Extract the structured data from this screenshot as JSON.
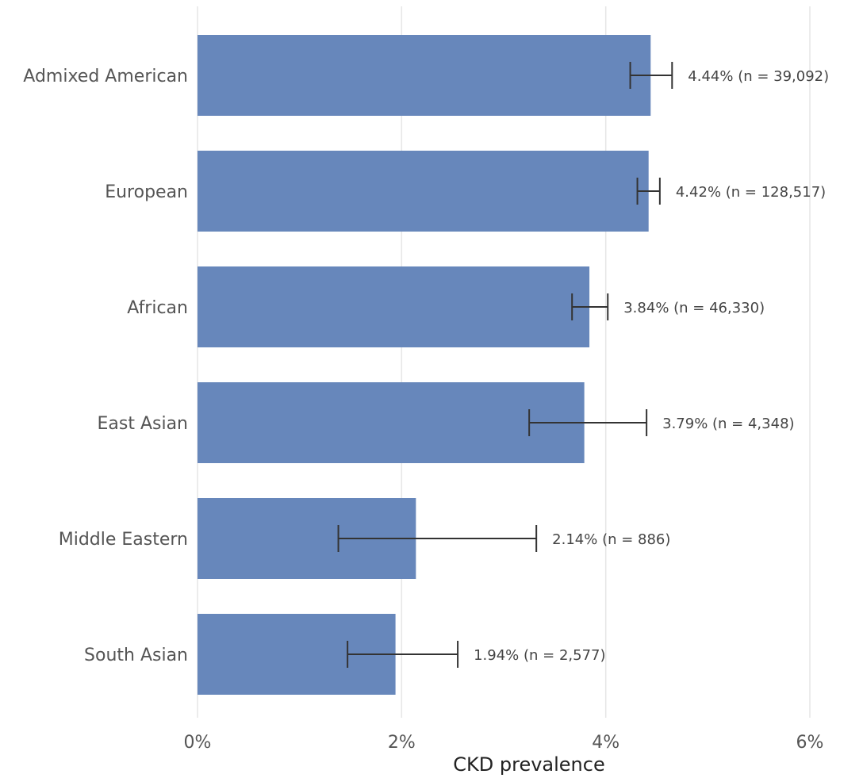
{
  "chart_data": {
    "type": "bar",
    "orientation": "horizontal",
    "xlabel": "CKD prevalence",
    "xlim": [
      0,
      6
    ],
    "xticks": [
      0,
      2,
      4,
      6
    ],
    "xtick_labels": [
      "0%",
      "2%",
      "4%",
      "6%"
    ],
    "grid": "vertical",
    "bar_color": "#6787bb",
    "errorbar_color": "#333333",
    "categories": [
      "Admixed American",
      "European",
      "African",
      "East Asian",
      "Middle Eastern",
      "South Asian"
    ],
    "values": [
      4.44,
      4.42,
      3.84,
      3.79,
      2.14,
      1.94
    ],
    "ci_low": [
      4.24,
      4.31,
      3.67,
      3.25,
      1.38,
      1.47
    ],
    "ci_high": [
      4.65,
      4.53,
      4.02,
      4.4,
      3.32,
      2.55
    ],
    "data_labels": [
      "4.44%  (n = 39,092)",
      "4.42%  (n = 128,517)",
      "3.84%  (n = 46,330)",
      "3.79%  (n = 4,348)",
      "2.14%  (n = 886)",
      "1.94%  (n = 2,577)"
    ]
  }
}
